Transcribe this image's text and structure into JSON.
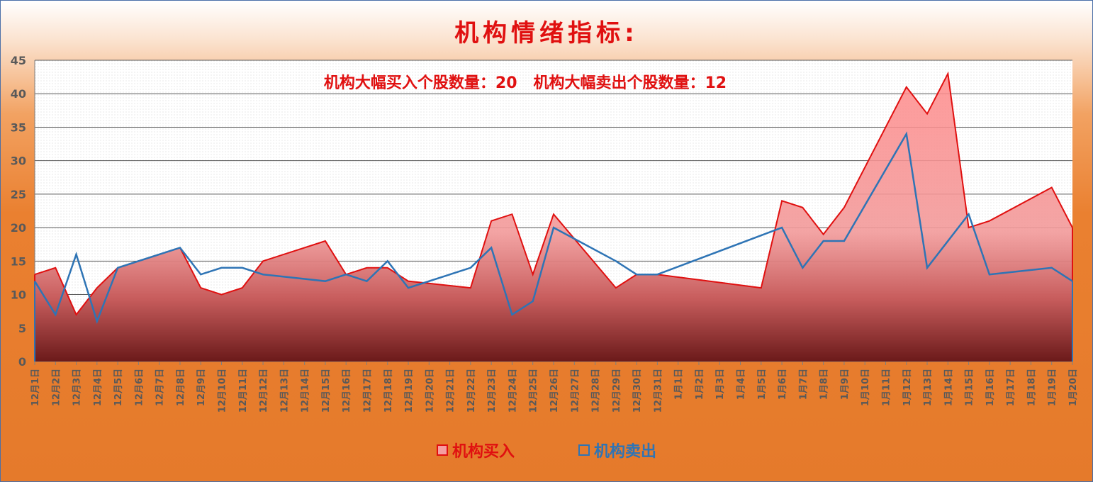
{
  "chart_data": {
    "type": "area",
    "title": "机构情绪指标:",
    "annotation": "机构大幅买入个股数量：20   机构大幅卖出个股数量：12",
    "ylim": [
      0,
      45
    ],
    "yticks": [
      0,
      5,
      10,
      15,
      20,
      25,
      30,
      35,
      40,
      45
    ],
    "grid": true,
    "legend_position": "bottom",
    "categories": [
      "12月1日",
      "12月2日",
      "12月3日",
      "12月4日",
      "12月5日",
      "12月6日",
      "12月7日",
      "12月8日",
      "12月9日",
      "12月10日",
      "12月11日",
      "12月12日",
      "12月13日",
      "12月14日",
      "12月15日",
      "12月16日",
      "12月17日",
      "12月18日",
      "12月19日",
      "12月20日",
      "12月21日",
      "12月22日",
      "12月23日",
      "12月24日",
      "12月25日",
      "12月26日",
      "12月27日",
      "12月28日",
      "12月29日",
      "12月30日",
      "12月31日",
      "1月1日",
      "1月2日",
      "1月3日",
      "1月4日",
      "1月5日",
      "1月6日",
      "1月7日",
      "1月8日",
      "1月9日",
      "1月10日",
      "1月11日",
      "1月12日",
      "1月13日",
      "1月14日",
      "1月15日",
      "1月16日",
      "1月17日",
      "1月18日",
      "1月19日",
      "1月20日"
    ],
    "series": [
      {
        "name": "机构买入",
        "kind": "area",
        "color": "#e01010",
        "fill": "#f59ea0",
        "points": [
          [
            0,
            13
          ],
          [
            1,
            14
          ],
          [
            2,
            7
          ],
          [
            3,
            11
          ],
          [
            4,
            14
          ],
          [
            7,
            17
          ],
          [
            8,
            11
          ],
          [
            9,
            10
          ],
          [
            10,
            11
          ],
          [
            11,
            15
          ],
          [
            14,
            18
          ],
          [
            15,
            13
          ],
          [
            16,
            14
          ],
          [
            17,
            14
          ],
          [
            18,
            12
          ],
          [
            21,
            11
          ],
          [
            22,
            21
          ],
          [
            23,
            22
          ],
          [
            24,
            13
          ],
          [
            25,
            22
          ],
          [
            28,
            11
          ],
          [
            29,
            13
          ],
          [
            30,
            13
          ],
          [
            35,
            11
          ],
          [
            36,
            24
          ],
          [
            37,
            23
          ],
          [
            38,
            19
          ],
          [
            39,
            23
          ],
          [
            42,
            41
          ],
          [
            43,
            37
          ],
          [
            44,
            43
          ],
          [
            45,
            20
          ],
          [
            46,
            21
          ],
          [
            49,
            26
          ],
          [
            50,
            20
          ]
        ]
      },
      {
        "name": "机构卖出",
        "kind": "line",
        "color": "#2e74b5",
        "points": [
          [
            0,
            12
          ],
          [
            1,
            7
          ],
          [
            2,
            16
          ],
          [
            3,
            6
          ],
          [
            4,
            14
          ],
          [
            7,
            17
          ],
          [
            8,
            13
          ],
          [
            9,
            14
          ],
          [
            10,
            14
          ],
          [
            11,
            13
          ],
          [
            14,
            12
          ],
          [
            15,
            13
          ],
          [
            16,
            12
          ],
          [
            17,
            15
          ],
          [
            18,
            11
          ],
          [
            21,
            14
          ],
          [
            22,
            17
          ],
          [
            23,
            7
          ],
          [
            24,
            9
          ],
          [
            25,
            20
          ],
          [
            28,
            15
          ],
          [
            29,
            13
          ],
          [
            30,
            13
          ],
          [
            36,
            20
          ],
          [
            37,
            14
          ],
          [
            38,
            18
          ],
          [
            39,
            18
          ],
          [
            42,
            34
          ],
          [
            43,
            14
          ],
          [
            45,
            22
          ],
          [
            46,
            13
          ],
          [
            49,
            14
          ],
          [
            50,
            12
          ]
        ]
      }
    ]
  },
  "legend": {
    "buy_label": "机构买入",
    "sell_label": "机构卖出"
  }
}
